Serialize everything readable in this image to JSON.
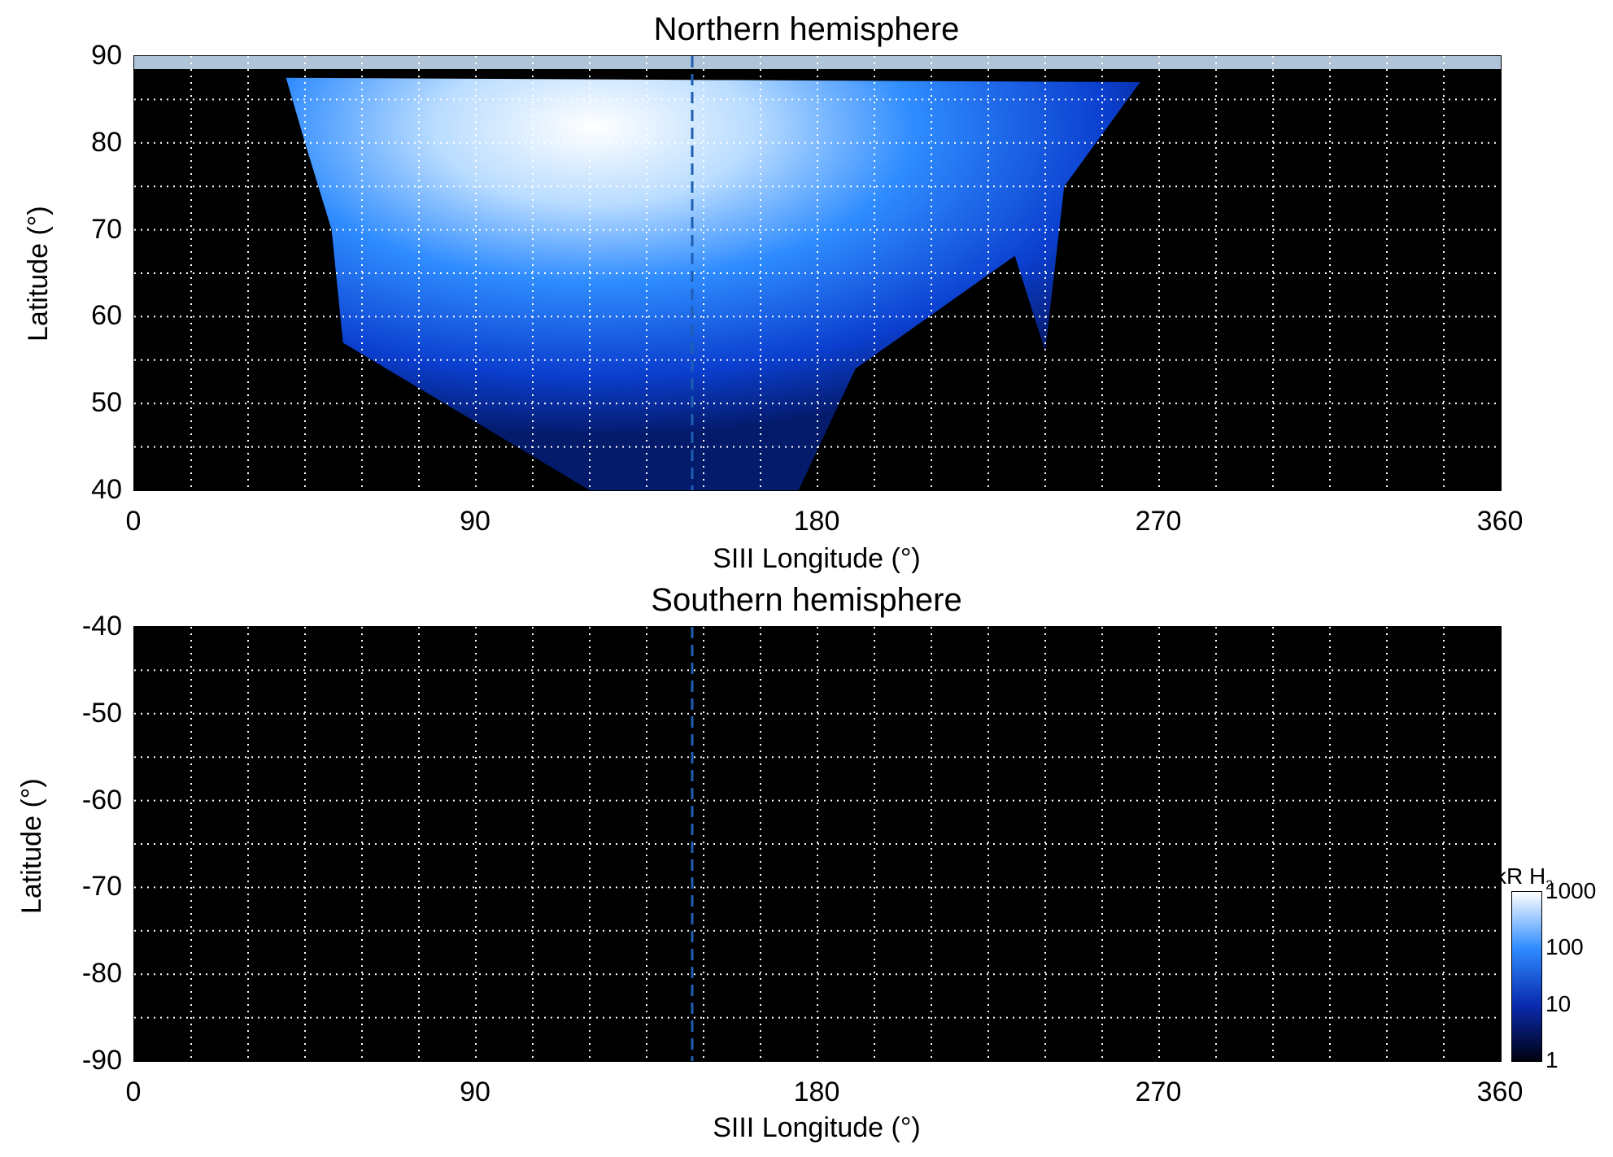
{
  "chart_data": [
    {
      "type": "heatmap",
      "title": "Northern hemisphere",
      "xlabel": "SIII Longitude (°)",
      "ylabel": "Latitude (°)",
      "xlim": [
        0,
        360
      ],
      "ylim": [
        40,
        90
      ],
      "xticks": [
        "0",
        "90",
        "180",
        "270",
        "360"
      ],
      "yticks": [
        "40",
        "50",
        "60",
        "70",
        "80",
        "90"
      ],
      "grid": true,
      "reference_line": {
        "x": 147,
        "style": "dashed",
        "color": "#1e5fb4"
      },
      "emission": {
        "description_points": [
          {
            "lon": 40,
            "lat": 87.5
          },
          {
            "lon": 45,
            "lat": 80
          },
          {
            "lon": 52,
            "lat": 70
          },
          {
            "lon": 55,
            "lat": 57
          },
          {
            "lon": 120,
            "lat": 40
          },
          {
            "lon": 175,
            "lat": 40
          },
          {
            "lon": 190,
            "lat": 54
          },
          {
            "lon": 232,
            "lat": 67
          },
          {
            "lon": 240,
            "lat": 56
          },
          {
            "lon": 245,
            "lat": 75
          },
          {
            "lon": 265,
            "lat": 87
          }
        ]
      }
    },
    {
      "type": "heatmap",
      "title": "Southern hemisphere",
      "xlabel": "SIII Longitude (°)",
      "ylabel": "Latitude (°)",
      "xlim": [
        0,
        360
      ],
      "ylim": [
        -90,
        -40
      ],
      "xticks": [
        "0",
        "90",
        "180",
        "270",
        "360"
      ],
      "yticks": [
        "-40",
        "-50",
        "-60",
        "-70",
        "-80",
        "-90"
      ],
      "grid": true,
      "reference_line": {
        "x": 147,
        "style": "dashed",
        "color": "#1e5fb4"
      }
    }
  ],
  "colorbar": {
    "label": "kR H",
    "label_subscript": "2",
    "scale": "log",
    "range": [
      1,
      1000
    ],
    "ticks": [
      "1000",
      "100",
      "10",
      "1"
    ],
    "colors": [
      "#ffffff",
      "#2f8cff",
      "#0a2bb0",
      "#000010"
    ]
  }
}
